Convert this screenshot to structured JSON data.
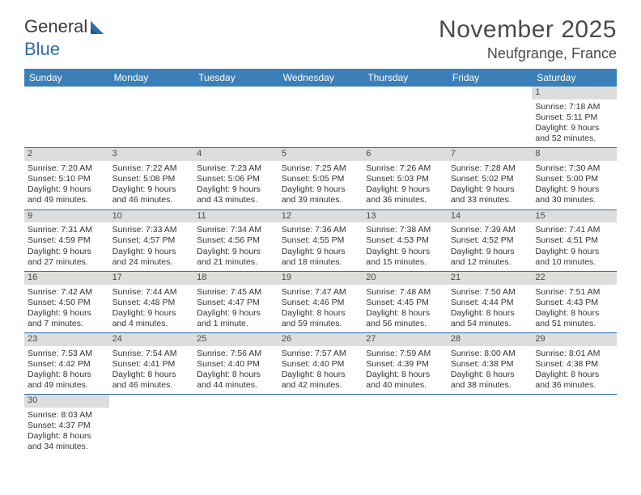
{
  "logo": {
    "part1": "General",
    "part2": "Blue"
  },
  "title": "November 2025",
  "location": "Neufgrange, France",
  "colors": {
    "header_bg": "#3b7fb8",
    "daybar_bg": "#dddddd",
    "divider": "#2f6fa8",
    "text": "#333333"
  },
  "days_of_week": [
    "Sunday",
    "Monday",
    "Tuesday",
    "Wednesday",
    "Thursday",
    "Friday",
    "Saturday"
  ],
  "weeks": [
    [
      null,
      null,
      null,
      null,
      null,
      null,
      {
        "n": "1",
        "sunrise": "Sunrise: 7:18 AM",
        "sunset": "Sunset: 5:11 PM",
        "d1": "Daylight: 9 hours",
        "d2": "and 52 minutes."
      }
    ],
    [
      {
        "n": "2",
        "sunrise": "Sunrise: 7:20 AM",
        "sunset": "Sunset: 5:10 PM",
        "d1": "Daylight: 9 hours",
        "d2": "and 49 minutes."
      },
      {
        "n": "3",
        "sunrise": "Sunrise: 7:22 AM",
        "sunset": "Sunset: 5:08 PM",
        "d1": "Daylight: 9 hours",
        "d2": "and 46 minutes."
      },
      {
        "n": "4",
        "sunrise": "Sunrise: 7:23 AM",
        "sunset": "Sunset: 5:06 PM",
        "d1": "Daylight: 9 hours",
        "d2": "and 43 minutes."
      },
      {
        "n": "5",
        "sunrise": "Sunrise: 7:25 AM",
        "sunset": "Sunset: 5:05 PM",
        "d1": "Daylight: 9 hours",
        "d2": "and 39 minutes."
      },
      {
        "n": "6",
        "sunrise": "Sunrise: 7:26 AM",
        "sunset": "Sunset: 5:03 PM",
        "d1": "Daylight: 9 hours",
        "d2": "and 36 minutes."
      },
      {
        "n": "7",
        "sunrise": "Sunrise: 7:28 AM",
        "sunset": "Sunset: 5:02 PM",
        "d1": "Daylight: 9 hours",
        "d2": "and 33 minutes."
      },
      {
        "n": "8",
        "sunrise": "Sunrise: 7:30 AM",
        "sunset": "Sunset: 5:00 PM",
        "d1": "Daylight: 9 hours",
        "d2": "and 30 minutes."
      }
    ],
    [
      {
        "n": "9",
        "sunrise": "Sunrise: 7:31 AM",
        "sunset": "Sunset: 4:59 PM",
        "d1": "Daylight: 9 hours",
        "d2": "and 27 minutes."
      },
      {
        "n": "10",
        "sunrise": "Sunrise: 7:33 AM",
        "sunset": "Sunset: 4:57 PM",
        "d1": "Daylight: 9 hours",
        "d2": "and 24 minutes."
      },
      {
        "n": "11",
        "sunrise": "Sunrise: 7:34 AM",
        "sunset": "Sunset: 4:56 PM",
        "d1": "Daylight: 9 hours",
        "d2": "and 21 minutes."
      },
      {
        "n": "12",
        "sunrise": "Sunrise: 7:36 AM",
        "sunset": "Sunset: 4:55 PM",
        "d1": "Daylight: 9 hours",
        "d2": "and 18 minutes."
      },
      {
        "n": "13",
        "sunrise": "Sunrise: 7:38 AM",
        "sunset": "Sunset: 4:53 PM",
        "d1": "Daylight: 9 hours",
        "d2": "and 15 minutes."
      },
      {
        "n": "14",
        "sunrise": "Sunrise: 7:39 AM",
        "sunset": "Sunset: 4:52 PM",
        "d1": "Daylight: 9 hours",
        "d2": "and 12 minutes."
      },
      {
        "n": "15",
        "sunrise": "Sunrise: 7:41 AM",
        "sunset": "Sunset: 4:51 PM",
        "d1": "Daylight: 9 hours",
        "d2": "and 10 minutes."
      }
    ],
    [
      {
        "n": "16",
        "sunrise": "Sunrise: 7:42 AM",
        "sunset": "Sunset: 4:50 PM",
        "d1": "Daylight: 9 hours",
        "d2": "and 7 minutes."
      },
      {
        "n": "17",
        "sunrise": "Sunrise: 7:44 AM",
        "sunset": "Sunset: 4:48 PM",
        "d1": "Daylight: 9 hours",
        "d2": "and 4 minutes."
      },
      {
        "n": "18",
        "sunrise": "Sunrise: 7:45 AM",
        "sunset": "Sunset: 4:47 PM",
        "d1": "Daylight: 9 hours",
        "d2": "and 1 minute."
      },
      {
        "n": "19",
        "sunrise": "Sunrise: 7:47 AM",
        "sunset": "Sunset: 4:46 PM",
        "d1": "Daylight: 8 hours",
        "d2": "and 59 minutes."
      },
      {
        "n": "20",
        "sunrise": "Sunrise: 7:48 AM",
        "sunset": "Sunset: 4:45 PM",
        "d1": "Daylight: 8 hours",
        "d2": "and 56 minutes."
      },
      {
        "n": "21",
        "sunrise": "Sunrise: 7:50 AM",
        "sunset": "Sunset: 4:44 PM",
        "d1": "Daylight: 8 hours",
        "d2": "and 54 minutes."
      },
      {
        "n": "22",
        "sunrise": "Sunrise: 7:51 AM",
        "sunset": "Sunset: 4:43 PM",
        "d1": "Daylight: 8 hours",
        "d2": "and 51 minutes."
      }
    ],
    [
      {
        "n": "23",
        "sunrise": "Sunrise: 7:53 AM",
        "sunset": "Sunset: 4:42 PM",
        "d1": "Daylight: 8 hours",
        "d2": "and 49 minutes."
      },
      {
        "n": "24",
        "sunrise": "Sunrise: 7:54 AM",
        "sunset": "Sunset: 4:41 PM",
        "d1": "Daylight: 8 hours",
        "d2": "and 46 minutes."
      },
      {
        "n": "25",
        "sunrise": "Sunrise: 7:56 AM",
        "sunset": "Sunset: 4:40 PM",
        "d1": "Daylight: 8 hours",
        "d2": "and 44 minutes."
      },
      {
        "n": "26",
        "sunrise": "Sunrise: 7:57 AM",
        "sunset": "Sunset: 4:40 PM",
        "d1": "Daylight: 8 hours",
        "d2": "and 42 minutes."
      },
      {
        "n": "27",
        "sunrise": "Sunrise: 7:59 AM",
        "sunset": "Sunset: 4:39 PM",
        "d1": "Daylight: 8 hours",
        "d2": "and 40 minutes."
      },
      {
        "n": "28",
        "sunrise": "Sunrise: 8:00 AM",
        "sunset": "Sunset: 4:38 PM",
        "d1": "Daylight: 8 hours",
        "d2": "and 38 minutes."
      },
      {
        "n": "29",
        "sunrise": "Sunrise: 8:01 AM",
        "sunset": "Sunset: 4:38 PM",
        "d1": "Daylight: 8 hours",
        "d2": "and 36 minutes."
      }
    ],
    [
      {
        "n": "30",
        "sunrise": "Sunrise: 8:03 AM",
        "sunset": "Sunset: 4:37 PM",
        "d1": "Daylight: 8 hours",
        "d2": "and 34 minutes."
      },
      null,
      null,
      null,
      null,
      null,
      null
    ]
  ]
}
